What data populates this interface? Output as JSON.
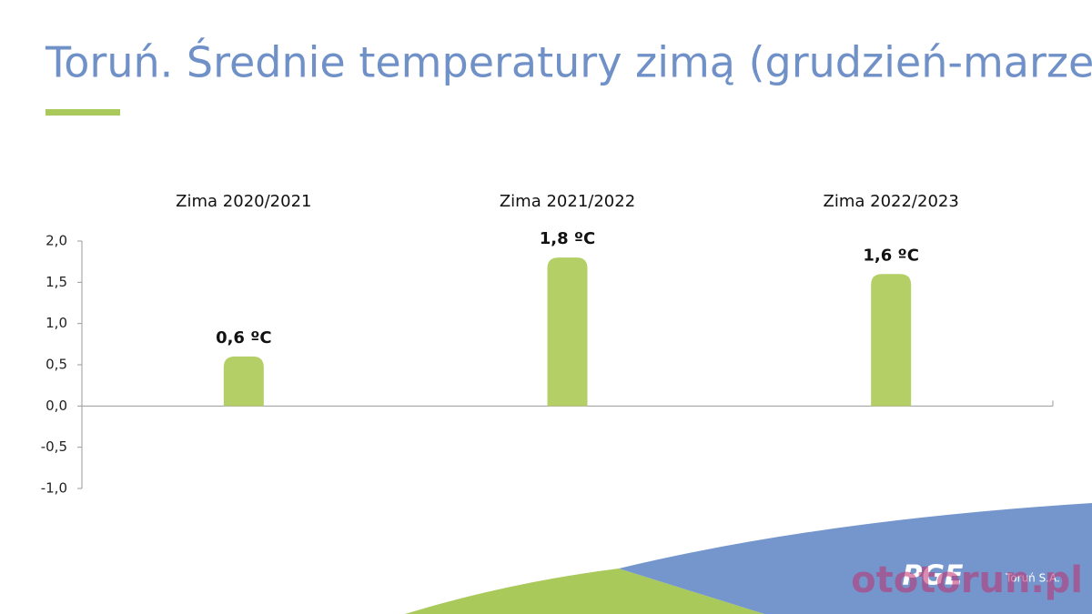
{
  "chart_data": {
    "type": "bar",
    "title": "Toruń. Średnie temperatury zimą (grudzień-marzec)",
    "categories": [
      "Zima 2020/2021",
      "Zima 2021/2022",
      "Zima 2022/2023"
    ],
    "values": [
      0.6,
      1.8,
      1.6
    ],
    "value_labels": [
      "0,6 ºC",
      "1,8 ºC",
      "1,6 ºC"
    ],
    "color": "#b3cf66",
    "ylim": [
      -1,
      2
    ],
    "yticks": [
      {
        "value": -1,
        "label": "-1,0"
      },
      {
        "value": -0.5,
        "label": "-0,5"
      },
      {
        "value": 0,
        "label": "0,0"
      },
      {
        "value": 0.5,
        "label": "0,5"
      },
      {
        "value": 1,
        "label": "1,0"
      },
      {
        "value": 1.5,
        "label": "1,5"
      },
      {
        "value": 2,
        "label": "2,0"
      }
    ],
    "grid": false
  },
  "branding": {
    "logo": "PGE",
    "company": "Toruń S.A.",
    "watermark": "ototorun.pl"
  }
}
